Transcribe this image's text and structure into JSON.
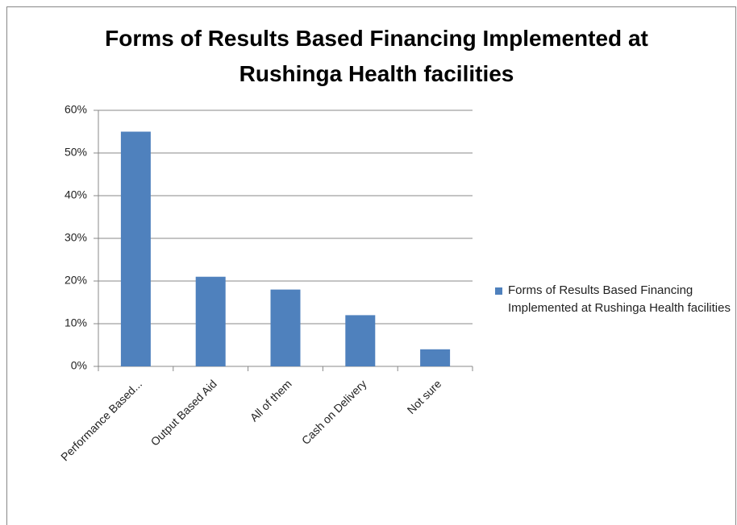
{
  "chart_data": {
    "type": "bar",
    "title": "Forms of Results Based Financing Implemented at Rushinga Health facilities",
    "categories": [
      "Performance Based...",
      "Output Based Aid",
      "All of them",
      "Cash on Delivery",
      "Not sure"
    ],
    "series": [
      {
        "name": "Forms of Results Based Financing Implemented at Rushinga Health facilities",
        "color": "#4f81bd",
        "values": [
          55,
          21,
          18,
          12,
          4
        ]
      }
    ],
    "ylim": [
      0,
      60
    ],
    "yticks": [
      {
        "value": 0,
        "label": "0%"
      },
      {
        "value": 10,
        "label": "10%"
      },
      {
        "value": 20,
        "label": "20%"
      },
      {
        "value": 30,
        "label": "30%"
      },
      {
        "value": 40,
        "label": "40%"
      },
      {
        "value": 50,
        "label": "50%"
      },
      {
        "value": 60,
        "label": "60%"
      }
    ],
    "grid": true,
    "legend": "right"
  }
}
